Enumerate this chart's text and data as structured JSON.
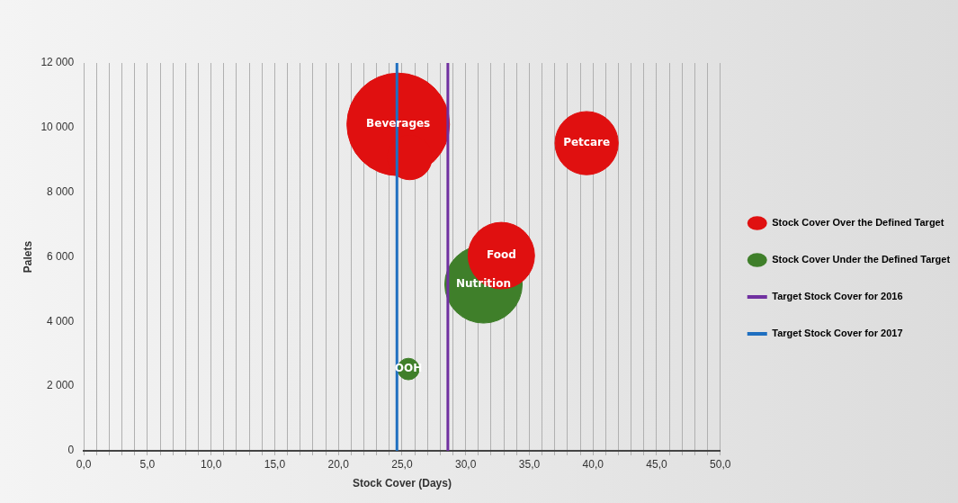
{
  "chart_data": {
    "type": "bubble",
    "xlabel": "Stock Cover (Days)",
    "ylabel": "Palets",
    "series": [
      {
        "name": "Stock Cover Over the Defined Target",
        "color": "#e01010",
        "x": [
          24.7,
          25.6,
          39.5,
          32.8
        ],
        "values": [
          10100,
          9080,
          9520,
          6040
        ],
        "sizes": [
          1,
          0.19,
          0.38,
          0.42
        ]
      },
      {
        "name": "Stock Cover Under the Defined Target",
        "color": "#3f7f2a",
        "x": [
          31.4,
          25.5
        ],
        "values": [
          5150,
          2530
        ],
        "sizes": [
          0.57,
          0.044
        ]
      },
      {
        "name": "Target Stock Cover for 2016",
        "type": "line",
        "color": "#7030a0",
        "x": [
          28.6,
          28.6
        ],
        "values": [
          0,
          12000
        ]
      },
      {
        "name": "Target Stock Cover for 2017",
        "type": "line",
        "color": "#1f6fc0",
        "x": [
          24.6,
          24.6
        ],
        "values": [
          0,
          12000
        ]
      }
    ],
    "annotations": [
      {
        "text": "Beverages",
        "x": 24.7,
        "y": 10100
      },
      {
        "text": "Petcare",
        "x": 39.5,
        "y": 9520
      },
      {
        "text": "Food",
        "x": 32.8,
        "y": 6040
      },
      {
        "text": "Nutrition",
        "x": 31.4,
        "y": 5150
      },
      {
        "text": "OOH",
        "x": 25.5,
        "y": 2530
      }
    ],
    "xlim": [
      0,
      50
    ],
    "xticks": [
      {
        "value": 0,
        "label": "0,0"
      },
      {
        "value": 1,
        "label": null
      },
      {
        "value": 2,
        "label": null
      },
      {
        "value": 3,
        "label": null
      },
      {
        "value": 4,
        "label": null
      },
      {
        "value": 5,
        "label": "5,0"
      },
      {
        "value": 6,
        "label": null
      },
      {
        "value": 7,
        "label": null
      },
      {
        "value": 8,
        "label": null
      },
      {
        "value": 9,
        "label": null
      },
      {
        "value": 10,
        "label": "10,0"
      },
      {
        "value": 11,
        "label": null
      },
      {
        "value": 12,
        "label": null
      },
      {
        "value": 13,
        "label": null
      },
      {
        "value": 14,
        "label": null
      },
      {
        "value": 15,
        "label": "15,0"
      },
      {
        "value": 16,
        "label": null
      },
      {
        "value": 17,
        "label": null
      },
      {
        "value": 18,
        "label": null
      },
      {
        "value": 19,
        "label": null
      },
      {
        "value": 20,
        "label": "20,0"
      },
      {
        "value": 21,
        "label": null
      },
      {
        "value": 22,
        "label": null
      },
      {
        "value": 23,
        "label": null
      },
      {
        "value": 24,
        "label": null
      },
      {
        "value": 25,
        "label": "25,0"
      },
      {
        "value": 26,
        "label": null
      },
      {
        "value": 27,
        "label": null
      },
      {
        "value": 28,
        "label": null
      },
      {
        "value": 29,
        "label": null
      },
      {
        "value": 30,
        "label": "30,0"
      },
      {
        "value": 31,
        "label": null
      },
      {
        "value": 32,
        "label": null
      },
      {
        "value": 33,
        "label": null
      },
      {
        "value": 34,
        "label": null
      },
      {
        "value": 35,
        "label": "35,0"
      },
      {
        "value": 36,
        "label": null
      },
      {
        "value": 37,
        "label": null
      },
      {
        "value": 38,
        "label": null
      },
      {
        "value": 39,
        "label": null
      },
      {
        "value": 40,
        "label": "40,0"
      },
      {
        "value": 41,
        "label": null
      },
      {
        "value": 42,
        "label": null
      },
      {
        "value": 43,
        "label": null
      },
      {
        "value": 44,
        "label": null
      },
      {
        "value": 45,
        "label": "45,0"
      },
      {
        "value": 46,
        "label": null
      },
      {
        "value": 47,
        "label": null
      },
      {
        "value": 48,
        "label": null
      },
      {
        "value": 49,
        "label": null
      },
      {
        "value": 50,
        "label": "50,0"
      }
    ],
    "ylim": [
      0,
      12000
    ],
    "yticks": [
      {
        "value": 0,
        "label": "0"
      },
      {
        "value": 2000,
        "label": "2 000"
      },
      {
        "value": 4000,
        "label": "4 000"
      },
      {
        "value": 6000,
        "label": "6 000"
      },
      {
        "value": 8000,
        "label": "8 000"
      },
      {
        "value": 10000,
        "label": "10 000"
      },
      {
        "value": 12000,
        "label": "12 000"
      }
    ],
    "grid": "x",
    "legend": "right"
  }
}
